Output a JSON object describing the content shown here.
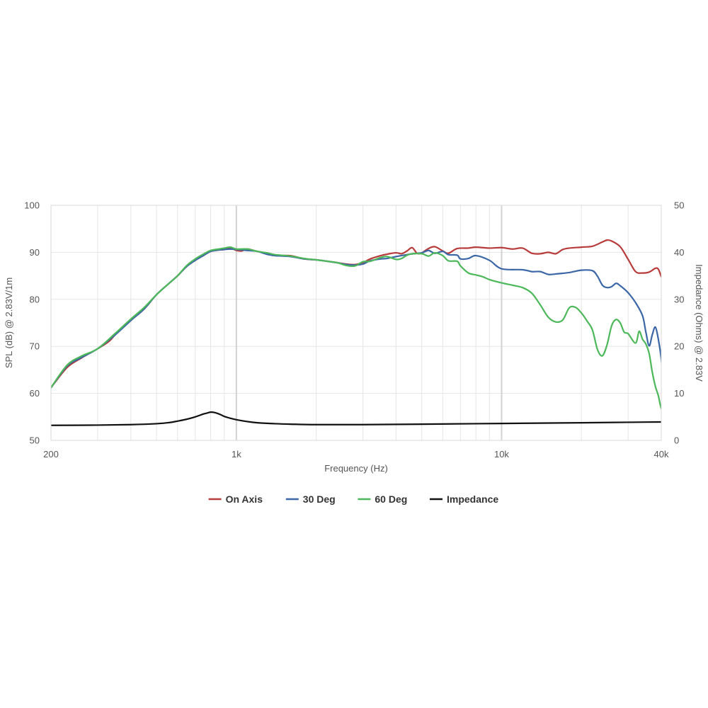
{
  "chart_data": {
    "type": "line",
    "xlabel": "Frequency (Hz)",
    "ylabel_left": "SPL (dB) @ 2.83V/1m",
    "ylabel_right": "Impedance (Ohms) @ 2.83V",
    "x_scale": "log",
    "xlim": [
      200,
      40000
    ],
    "ylim_left": [
      50,
      100
    ],
    "ylim_right": [
      0,
      50
    ],
    "x_ticks": [
      {
        "value": 200,
        "label": "200"
      },
      {
        "value": 1000,
        "label": "1k"
      },
      {
        "value": 10000,
        "label": "10k"
      },
      {
        "value": 40000,
        "label": "40k"
      }
    ],
    "y_ticks_left": [
      "50",
      "60",
      "70",
      "80",
      "90",
      "100"
    ],
    "y_ticks_right": [
      "0",
      "10",
      "20",
      "30",
      "40",
      "50"
    ],
    "grid": true,
    "legend_position": "bottom",
    "series": [
      {
        "name": "On Axis",
        "color": "#b83b3b",
        "axis": "left",
        "points": [
          [
            200,
            61.2
          ],
          [
            230,
            65.5
          ],
          [
            260,
            67.5
          ],
          [
            300,
            69.5
          ],
          [
            330,
            71
          ],
          [
            350,
            72.5
          ],
          [
            400,
            75.5
          ],
          [
            450,
            78
          ],
          [
            500,
            81
          ],
          [
            560,
            83.5
          ],
          [
            600,
            85
          ],
          [
            650,
            87
          ],
          [
            700,
            88.3
          ],
          [
            750,
            89.3
          ],
          [
            800,
            90.2
          ],
          [
            860,
            90.5
          ],
          [
            900,
            90.6
          ],
          [
            950,
            90.9
          ],
          [
            1000,
            90.4
          ],
          [
            1050,
            90.3
          ],
          [
            1100,
            90.7
          ],
          [
            1200,
            90.2
          ],
          [
            1300,
            89.8
          ],
          [
            1400,
            89.3
          ],
          [
            1600,
            89.3
          ],
          [
            1800,
            88.6
          ],
          [
            2000,
            88.4
          ],
          [
            2200,
            88.1
          ],
          [
            2400,
            87.8
          ],
          [
            2600,
            87.5
          ],
          [
            2800,
            87.4
          ],
          [
            3000,
            87.8
          ],
          [
            3200,
            88.6
          ],
          [
            3500,
            89.3
          ],
          [
            3700,
            89.6
          ],
          [
            4000,
            89.9
          ],
          [
            4200,
            89.7
          ],
          [
            4400,
            90.3
          ],
          [
            4600,
            91
          ],
          [
            4800,
            89.8
          ],
          [
            5000,
            89.9
          ],
          [
            5300,
            90.8
          ],
          [
            5600,
            91.2
          ],
          [
            6000,
            90.3
          ],
          [
            6300,
            89.8
          ],
          [
            6800,
            90.8
          ],
          [
            7500,
            90.9
          ],
          [
            8000,
            91.1
          ],
          [
            9000,
            90.9
          ],
          [
            10000,
            91
          ],
          [
            11000,
            90.7
          ],
          [
            12000,
            90.9
          ],
          [
            13000,
            89.8
          ],
          [
            14000,
            89.7
          ],
          [
            15000,
            90
          ],
          [
            16000,
            89.7
          ],
          [
            17000,
            90.6
          ],
          [
            18000,
            90.9
          ],
          [
            20000,
            91.1
          ],
          [
            22000,
            91.3
          ],
          [
            24000,
            92.2
          ],
          [
            25000,
            92.6
          ],
          [
            26000,
            92.4
          ],
          [
            28000,
            91.2
          ],
          [
            30000,
            88.5
          ],
          [
            32000,
            85.9
          ],
          [
            34000,
            85.6
          ],
          [
            36000,
            85.8
          ],
          [
            38000,
            86.6
          ],
          [
            39000,
            86.4
          ],
          [
            40000,
            84.8
          ]
        ]
      },
      {
        "name": "30 Deg",
        "color": "#3b67a6",
        "axis": "left",
        "points": [
          [
            200,
            61.2
          ],
          [
            230,
            65.8
          ],
          [
            260,
            67.6
          ],
          [
            300,
            69.5
          ],
          [
            350,
            72.5
          ],
          [
            400,
            75.5
          ],
          [
            450,
            78
          ],
          [
            500,
            81
          ],
          [
            560,
            83.5
          ],
          [
            600,
            85
          ],
          [
            650,
            87
          ],
          [
            700,
            88.3
          ],
          [
            750,
            89.3
          ],
          [
            800,
            90.2
          ],
          [
            860,
            90.5
          ],
          [
            900,
            90.6
          ],
          [
            950,
            90.7
          ],
          [
            1000,
            90.6
          ],
          [
            1100,
            90.4
          ],
          [
            1200,
            90.2
          ],
          [
            1300,
            89.6
          ],
          [
            1400,
            89.3
          ],
          [
            1600,
            89.1
          ],
          [
            1800,
            88.6
          ],
          [
            2000,
            88.4
          ],
          [
            2200,
            88.1
          ],
          [
            2400,
            87.8
          ],
          [
            2600,
            87.4
          ],
          [
            2800,
            87.3
          ],
          [
            3000,
            87.5
          ],
          [
            3200,
            88.2
          ],
          [
            3500,
            88.6
          ],
          [
            3700,
            88.7
          ],
          [
            4000,
            89.1
          ],
          [
            4500,
            89.6
          ],
          [
            5000,
            89.9
          ],
          [
            5300,
            90.4
          ],
          [
            5600,
            89.8
          ],
          [
            6000,
            90.2
          ],
          [
            6300,
            89.5
          ],
          [
            6800,
            89.4
          ],
          [
            7000,
            88.6
          ],
          [
            7500,
            88.7
          ],
          [
            8000,
            89.3
          ],
          [
            9000,
            88.3
          ],
          [
            10000,
            86.5
          ],
          [
            12000,
            86.3
          ],
          [
            13000,
            85.9
          ],
          [
            14000,
            85.9
          ],
          [
            15000,
            85.3
          ],
          [
            16000,
            85.4
          ],
          [
            18000,
            85.7
          ],
          [
            20000,
            86.2
          ],
          [
            22000,
            86.1
          ],
          [
            23000,
            84.9
          ],
          [
            24000,
            83
          ],
          [
            25000,
            82.5
          ],
          [
            26000,
            82.7
          ],
          [
            27000,
            83.4
          ],
          [
            28000,
            82.9
          ],
          [
            30000,
            81.4
          ],
          [
            32000,
            79.3
          ],
          [
            34000,
            76.5
          ],
          [
            35000,
            73
          ],
          [
            36000,
            70.1
          ],
          [
            37000,
            72.5
          ],
          [
            38000,
            74.1
          ],
          [
            39000,
            71.5
          ],
          [
            40000,
            67.3
          ],
          [
            40500,
            63.4
          ],
          [
            41000,
            62.2
          ],
          [
            42000,
            64.5
          ],
          [
            44000,
            69
          ],
          [
            45000,
            73.3
          ]
        ]
      },
      {
        "name": "60 Deg",
        "color": "#4cb85a",
        "axis": "left",
        "points": [
          [
            200,
            61.2
          ],
          [
            230,
            66
          ],
          [
            260,
            67.9
          ],
          [
            300,
            69.5
          ],
          [
            350,
            72.8
          ],
          [
            400,
            75.8
          ],
          [
            450,
            78.3
          ],
          [
            500,
            81
          ],
          [
            560,
            83.5
          ],
          [
            600,
            85
          ],
          [
            650,
            87.2
          ],
          [
            700,
            88.6
          ],
          [
            750,
            89.6
          ],
          [
            800,
            90.4
          ],
          [
            860,
            90.7
          ],
          [
            900,
            90.9
          ],
          [
            950,
            91.1
          ],
          [
            1000,
            90.7
          ],
          [
            1100,
            90.7
          ],
          [
            1200,
            90.2
          ],
          [
            1300,
            89.9
          ],
          [
            1400,
            89.5
          ],
          [
            1600,
            89.2
          ],
          [
            1800,
            88.7
          ],
          [
            2000,
            88.4
          ],
          [
            2200,
            88.1
          ],
          [
            2400,
            87.8
          ],
          [
            2600,
            87.2
          ],
          [
            2800,
            87.1
          ],
          [
            3000,
            88
          ],
          [
            3200,
            88.1
          ],
          [
            3500,
            88.9
          ],
          [
            3700,
            89.1
          ],
          [
            4000,
            88.5
          ],
          [
            4200,
            88.7
          ],
          [
            4500,
            89.6
          ],
          [
            5000,
            89.7
          ],
          [
            5300,
            89.2
          ],
          [
            5600,
            89.9
          ],
          [
            6000,
            89.3
          ],
          [
            6300,
            88.2
          ],
          [
            6800,
            88.1
          ],
          [
            7000,
            87.1
          ],
          [
            7500,
            85.6
          ],
          [
            8000,
            85.2
          ],
          [
            8500,
            84.8
          ],
          [
            9000,
            84.2
          ],
          [
            10000,
            83.5
          ],
          [
            11000,
            83
          ],
          [
            12000,
            82.5
          ],
          [
            13000,
            81.3
          ],
          [
            14000,
            78.8
          ],
          [
            15000,
            76.2
          ],
          [
            16000,
            75.2
          ],
          [
            17000,
            75.6
          ],
          [
            18000,
            78.2
          ],
          [
            19000,
            78.3
          ],
          [
            20000,
            77.1
          ],
          [
            21000,
            75.4
          ],
          [
            22000,
            73.5
          ],
          [
            23000,
            69.3
          ],
          [
            24000,
            68
          ],
          [
            25000,
            70.4
          ],
          [
            26000,
            74.4
          ],
          [
            27000,
            75.7
          ],
          [
            28000,
            75
          ],
          [
            29000,
            73
          ],
          [
            30000,
            72.7
          ],
          [
            32000,
            70.7
          ],
          [
            33000,
            73.2
          ],
          [
            34000,
            71.5
          ],
          [
            35000,
            70.5
          ],
          [
            36000,
            68.5
          ],
          [
            37000,
            64.5
          ],
          [
            38000,
            61.5
          ],
          [
            39000,
            59.5
          ],
          [
            40000,
            56.8
          ],
          [
            41000,
            57
          ],
          [
            43000,
            60.5
          ],
          [
            45000,
            64.3
          ]
        ]
      },
      {
        "name": "Impedance",
        "color": "#111111",
        "axis": "right",
        "points": [
          [
            200,
            3.2
          ],
          [
            300,
            3.25
          ],
          [
            400,
            3.35
          ],
          [
            500,
            3.55
          ],
          [
            560,
            3.8
          ],
          [
            600,
            4.1
          ],
          [
            650,
            4.5
          ],
          [
            700,
            5
          ],
          [
            750,
            5.6
          ],
          [
            780,
            5.85
          ],
          [
            800,
            6
          ],
          [
            830,
            5.9
          ],
          [
            870,
            5.5
          ],
          [
            900,
            5.1
          ],
          [
            950,
            4.7
          ],
          [
            1000,
            4.4
          ],
          [
            1100,
            4.0
          ],
          [
            1200,
            3.75
          ],
          [
            1400,
            3.55
          ],
          [
            1600,
            3.45
          ],
          [
            2000,
            3.35
          ],
          [
            3000,
            3.35
          ],
          [
            5000,
            3.45
          ],
          [
            10000,
            3.6
          ],
          [
            20000,
            3.75
          ],
          [
            30000,
            3.85
          ],
          [
            45000,
            3.95
          ]
        ]
      }
    ]
  }
}
